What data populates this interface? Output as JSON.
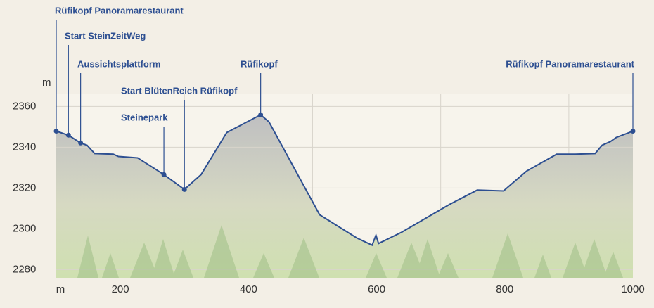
{
  "chart_data": {
    "type": "area",
    "y_label": "m",
    "x_label": "m",
    "x": [
      100,
      119,
      138,
      148,
      160,
      189,
      197,
      227,
      244,
      268,
      300,
      326,
      366,
      419,
      432,
      511,
      569,
      593,
      599,
      603,
      639,
      714,
      757,
      798,
      834,
      867,
      881,
      910,
      941,
      952,
      965,
      974,
      1000
    ],
    "values": [
      2347.9,
      2345.9,
      2342.1,
      2341,
      2336.9,
      2336.6,
      2335.5,
      2334.8,
      2331.4,
      2326.6,
      2319.3,
      2326.6,
      2347.2,
      2355.9,
      2352.4,
      2306.9,
      2295.5,
      2292,
      2296.9,
      2292.8,
      2298.3,
      2312,
      2319,
      2318.6,
      2328.3,
      2334.1,
      2336.6,
      2336.6,
      2336.9,
      2341,
      2342.8,
      2344.8,
      2347.9
    ],
    "color": "#2d4f91",
    "xlim": [
      100,
      1000
    ],
    "ylim": [
      2276,
      2366
    ],
    "xticks": [
      200,
      400,
      600,
      800,
      1000
    ],
    "x_gridlines": [
      300,
      500,
      700,
      900
    ],
    "yticks": [
      2280,
      2300,
      2320,
      2340,
      2360
    ],
    "grid": true,
    "waypoints": [
      {
        "label": "Rüfikopf Panoramarestaurant",
        "x": 100,
        "y": 2347.9
      },
      {
        "label": "Start SteinZeitWeg",
        "x": 119,
        "y": 2345.9
      },
      {
        "label": "Aussichtsplattform",
        "x": 138,
        "y": 2342.1
      },
      {
        "label": "Steinepark",
        "x": 268,
        "y": 2326.6
      },
      {
        "label": "Start BlütenReich Rüfikopf",
        "x": 300,
        "y": 2319.3
      },
      {
        "label": "Rüfikopf",
        "x": 419,
        "y": 2355.9
      },
      {
        "label": "Rüfikopf Panoramarestaurant",
        "x": 1000,
        "y": 2347.9
      }
    ]
  }
}
